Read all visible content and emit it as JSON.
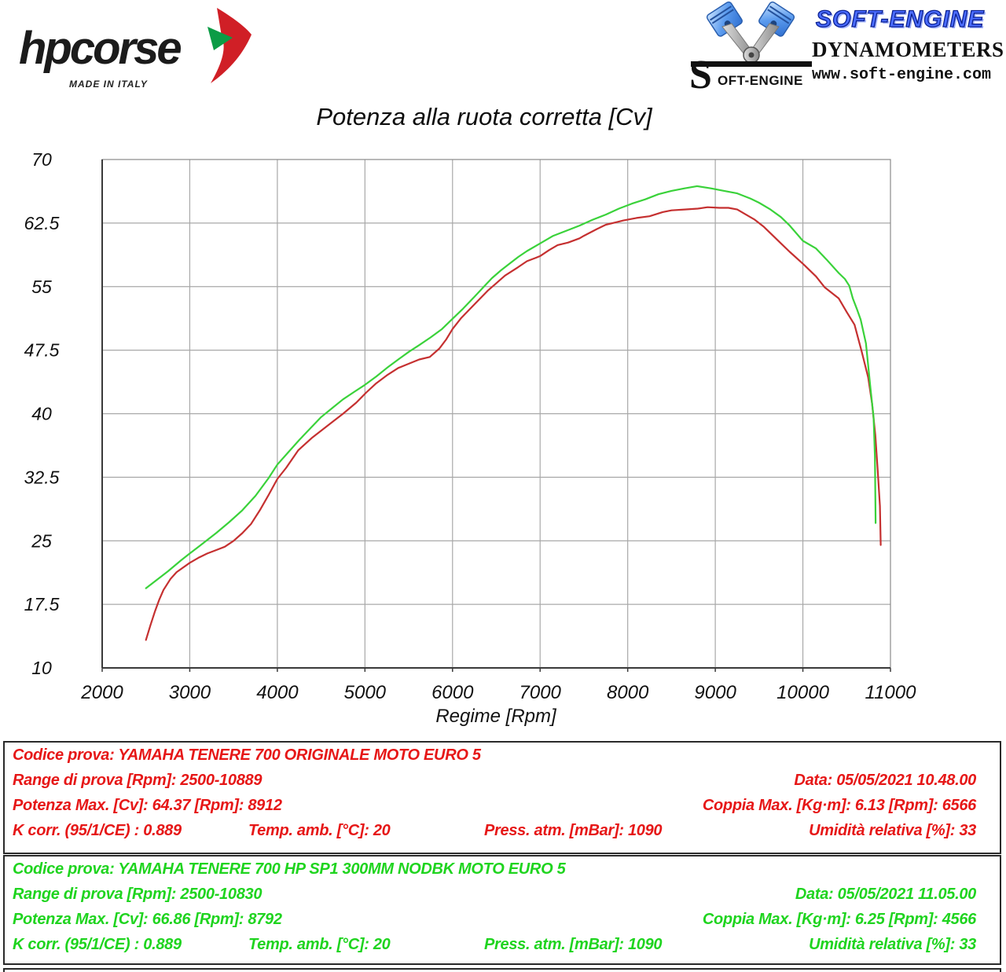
{
  "header": {
    "hpcorse": {
      "brand": "hpcorse",
      "made_in": "MADE IN ITALY"
    },
    "softengine": {
      "brand": "SOFT-ENGINE",
      "subtitle": "DYNAMOMETERS",
      "url": "www.soft-engine.com",
      "logo_s": "S",
      "logo_rest": "OFT-ENGINE"
    }
  },
  "chart_data": {
    "type": "line",
    "title": "Potenza alla ruota corretta [Cv]",
    "xlabel": "Regime [Rpm]",
    "ylabel": "",
    "xlim": [
      2000,
      11000
    ],
    "ylim": [
      10,
      70
    ],
    "x_ticks": [
      2000,
      3000,
      4000,
      5000,
      6000,
      7000,
      8000,
      9000,
      10000,
      11000
    ],
    "y_ticks": [
      70,
      62.5,
      55,
      47.5,
      40,
      32.5,
      25,
      17.5,
      10
    ],
    "grid": true,
    "legend_position": "none",
    "grid_color": "#a8a8a8",
    "axis_color": "#3a3a3a",
    "series": [
      {
        "name": "YAMAHA TENERE 700 ORIGINALE MOTO EURO 5",
        "color": "#c53030",
        "points": [
          [
            2500,
            13.3
          ],
          [
            2550,
            15.0
          ],
          [
            2600,
            16.6
          ],
          [
            2650,
            18.0
          ],
          [
            2700,
            19.2
          ],
          [
            2780,
            20.5
          ],
          [
            2850,
            21.3
          ],
          [
            3000,
            22.4
          ],
          [
            3100,
            23.0
          ],
          [
            3200,
            23.5
          ],
          [
            3300,
            23.9
          ],
          [
            3400,
            24.3
          ],
          [
            3500,
            25.0
          ],
          [
            3600,
            25.9
          ],
          [
            3700,
            27.0
          ],
          [
            3800,
            28.6
          ],
          [
            3900,
            30.4
          ],
          [
            4000,
            32.3
          ],
          [
            4100,
            33.6
          ],
          [
            4240,
            35.7
          ],
          [
            4400,
            37.2
          ],
          [
            4500,
            38.0
          ],
          [
            4650,
            39.2
          ],
          [
            4750,
            40.0
          ],
          [
            4900,
            41.3
          ],
          [
            5015,
            42.5
          ],
          [
            5130,
            43.6
          ],
          [
            5260,
            44.6
          ],
          [
            5380,
            45.4
          ],
          [
            5500,
            45.9
          ],
          [
            5620,
            46.4
          ],
          [
            5740,
            46.7
          ],
          [
            5850,
            47.7
          ],
          [
            5930,
            48.8
          ],
          [
            6000,
            50.0
          ],
          [
            6100,
            51.3
          ],
          [
            6250,
            52.9
          ],
          [
            6400,
            54.5
          ],
          [
            6500,
            55.4
          ],
          [
            6600,
            56.3
          ],
          [
            6750,
            57.3
          ],
          [
            6850,
            58.0
          ],
          [
            6950,
            58.4
          ],
          [
            7000,
            58.6
          ],
          [
            7100,
            59.3
          ],
          [
            7200,
            59.9
          ],
          [
            7320,
            60.2
          ],
          [
            7450,
            60.7
          ],
          [
            7500,
            61.0
          ],
          [
            7650,
            61.8
          ],
          [
            7750,
            62.3
          ],
          [
            7870,
            62.6
          ],
          [
            7950,
            62.8
          ],
          [
            8100,
            63.1
          ],
          [
            8250,
            63.3
          ],
          [
            8400,
            63.8
          ],
          [
            8500,
            64.0
          ],
          [
            8650,
            64.1
          ],
          [
            8800,
            64.2
          ],
          [
            8912,
            64.37
          ],
          [
            9050,
            64.3
          ],
          [
            9150,
            64.3
          ],
          [
            9250,
            64.1
          ],
          [
            9350,
            63.5
          ],
          [
            9450,
            62.9
          ],
          [
            9550,
            62.1
          ],
          [
            9630,
            61.3
          ],
          [
            9750,
            60.1
          ],
          [
            9850,
            59.1
          ],
          [
            10010,
            57.6
          ],
          [
            10150,
            56.2
          ],
          [
            10250,
            54.9
          ],
          [
            10410,
            53.6
          ],
          [
            10500,
            52.0
          ],
          [
            10590,
            50.5
          ],
          [
            10670,
            47.4
          ],
          [
            10745,
            44.3
          ],
          [
            10790,
            41.2
          ],
          [
            10827,
            37.5
          ],
          [
            10854,
            33.4
          ],
          [
            10880,
            29.1
          ],
          [
            10889,
            24.5
          ]
        ]
      },
      {
        "name": "YAMAHA TENERE 700 HP SP1 300MM NODBK MOTO EURO 5",
        "color": "#3ad23a",
        "points": [
          [
            2500,
            19.4
          ],
          [
            2600,
            20.2
          ],
          [
            2750,
            21.4
          ],
          [
            2900,
            22.7
          ],
          [
            3000,
            23.5
          ],
          [
            3150,
            24.7
          ],
          [
            3300,
            25.9
          ],
          [
            3450,
            27.2
          ],
          [
            3600,
            28.6
          ],
          [
            3750,
            30.3
          ],
          [
            3900,
            32.4
          ],
          [
            4000,
            34.0
          ],
          [
            4120,
            35.4
          ],
          [
            4250,
            36.9
          ],
          [
            4380,
            38.3
          ],
          [
            4500,
            39.6
          ],
          [
            4630,
            40.7
          ],
          [
            4750,
            41.7
          ],
          [
            4880,
            42.6
          ],
          [
            5000,
            43.4
          ],
          [
            5130,
            44.4
          ],
          [
            5250,
            45.4
          ],
          [
            5380,
            46.4
          ],
          [
            5500,
            47.3
          ],
          [
            5620,
            48.1
          ],
          [
            5750,
            49.0
          ],
          [
            5880,
            50.0
          ],
          [
            6000,
            51.2
          ],
          [
            6120,
            52.4
          ],
          [
            6250,
            53.8
          ],
          [
            6350,
            54.9
          ],
          [
            6450,
            56.0
          ],
          [
            6550,
            56.9
          ],
          [
            6650,
            57.7
          ],
          [
            6750,
            58.5
          ],
          [
            6850,
            59.2
          ],
          [
            7000,
            60.1
          ],
          [
            7150,
            61.0
          ],
          [
            7300,
            61.6
          ],
          [
            7450,
            62.2
          ],
          [
            7600,
            62.9
          ],
          [
            7750,
            63.5
          ],
          [
            7900,
            64.2
          ],
          [
            8050,
            64.8
          ],
          [
            8200,
            65.3
          ],
          [
            8350,
            65.9
          ],
          [
            8500,
            66.3
          ],
          [
            8650,
            66.6
          ],
          [
            8792,
            66.86
          ],
          [
            8950,
            66.6
          ],
          [
            9100,
            66.3
          ],
          [
            9250,
            66.0
          ],
          [
            9400,
            65.4
          ],
          [
            9500,
            64.9
          ],
          [
            9630,
            64.1
          ],
          [
            9750,
            63.2
          ],
          [
            9850,
            62.2
          ],
          [
            10000,
            60.4
          ],
          [
            10150,
            59.5
          ],
          [
            10270,
            58.2
          ],
          [
            10410,
            56.6
          ],
          [
            10480,
            55.9
          ],
          [
            10530,
            55.1
          ],
          [
            10570,
            53.6
          ],
          [
            10615,
            52.4
          ],
          [
            10660,
            51.1
          ],
          [
            10720,
            48.3
          ],
          [
            10775,
            42.7
          ],
          [
            10807,
            39.6
          ],
          [
            10822,
            35.0
          ],
          [
            10830,
            27.1
          ]
        ]
      }
    ]
  },
  "tables": [
    {
      "color": "#e61717",
      "codice": "Codice prova: YAMAHA TENERE 700 ORIGINALE  MOTO EURO 5",
      "range": "Range di prova [Rpm]: 2500-10889",
      "data": "Data: 05/05/2021  10.48.00",
      "potenza": "Potenza Max. [Cv]: 64.37  [Rpm]: 8912",
      "coppia": "Coppia Max. [Kg·m]: 6.13  [Rpm]: 6566",
      "k_corr": "K corr. (95/1/CE) : 0.889",
      "temp": "Temp. amb. [°C]: 20",
      "press": "Press. atm. [mBar]: 1090",
      "umidita": "Umidità relativa [%]: 33"
    },
    {
      "color": "#1fd41f",
      "codice": "Codice prova: YAMAHA TENERE 700 HP SP1 300MM NODBK  MOTO EURO 5",
      "range": "Range di prova [Rpm]: 2500-10830",
      "data": "Data: 05/05/2021  11.05.00",
      "potenza": "Potenza Max. [Cv]: 66.86  [Rpm]: 8792",
      "coppia": "Coppia Max. [Kg·m]: 6.25  [Rpm]: 4566",
      "k_corr": "K corr. (95/1/CE) : 0.889",
      "temp": "Temp. amb. [°C]: 20",
      "press": "Press. atm. [mBar]: 1090",
      "umidita": "Umidità relativa [%]: 33"
    }
  ]
}
